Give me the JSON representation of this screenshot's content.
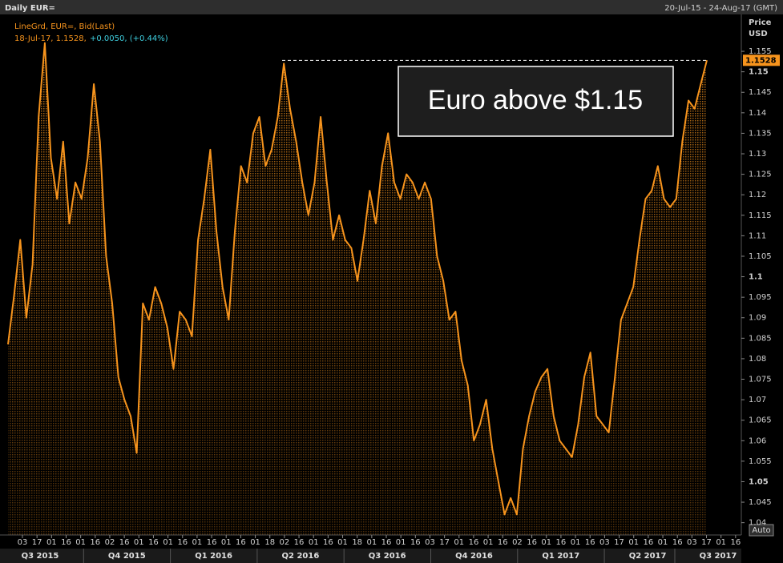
{
  "chart_data": {
    "type": "area",
    "title": "Daily EUR=",
    "date_range": "20-Jul-15 - 24-Aug-17 (GMT)",
    "legend_line": "LineGrd, EUR=, Bid(Last)",
    "legend_point": "18-Jul-17, 1.1528,",
    "legend_change": "+0.0050, (+0.44%)",
    "y_axis_label": [
      "Price",
      "USD"
    ],
    "annotation": "Euro above $1.15",
    "last_value": 1.1528,
    "auto_button": "Auto",
    "color": "#f7941d",
    "series": [
      {
        "name": "EUR=",
        "color": "#f7941d",
        "values": [
          1.0835,
          1.0955,
          1.109,
          1.09,
          1.103,
          1.139,
          1.157,
          1.129,
          1.119,
          1.133,
          1.113,
          1.123,
          1.119,
          1.129,
          1.147,
          1.133,
          1.105,
          1.0935,
          1.0755,
          1.07,
          1.066,
          1.057,
          1.0935,
          1.0895,
          1.0975,
          1.0935,
          1.0875,
          1.0775,
          1.0915,
          1.0895,
          1.0855,
          1.109,
          1.119,
          1.131,
          1.111,
          1.0975,
          1.0895,
          1.111,
          1.127,
          1.123,
          1.135,
          1.139,
          1.127,
          1.131,
          1.139,
          1.152,
          1.141,
          1.133,
          1.123,
          1.115,
          1.123,
          1.139,
          1.123,
          1.109,
          1.115,
          1.109,
          1.107,
          1.099,
          1.109,
          1.121,
          1.113,
          1.127,
          1.135,
          1.123,
          1.119,
          1.125,
          1.123,
          1.119,
          1.123,
          1.119,
          1.105,
          1.099,
          1.0895,
          1.0915,
          1.0795,
          1.0735,
          1.06,
          1.064,
          1.07,
          1.058,
          1.05,
          1.042,
          1.046,
          1.042,
          1.058,
          1.066,
          1.072,
          1.0755,
          1.0775,
          1.066,
          1.06,
          1.058,
          1.056,
          1.064,
          1.0755,
          1.0815,
          1.066,
          1.064,
          1.062,
          1.0755,
          1.0895,
          1.0935,
          1.0975,
          1.109,
          1.119,
          1.121,
          1.127,
          1.119,
          1.117,
          1.119,
          1.133,
          1.143,
          1.141,
          1.147,
          1.1528
        ]
      }
    ],
    "ylim": [
      1.037,
      1.164
    ],
    "yticks": [
      1.04,
      1.045,
      1.05,
      1.055,
      1.06,
      1.065,
      1.07,
      1.075,
      1.08,
      1.085,
      1.09,
      1.095,
      1.1,
      1.105,
      1.11,
      1.115,
      1.12,
      1.125,
      1.13,
      1.135,
      1.14,
      1.145,
      1.15,
      1.155
    ],
    "xticks": [
      "03",
      "17",
      "01",
      "16",
      "01",
      "16",
      "02",
      "16",
      "01",
      "16",
      "01",
      "16",
      "01",
      "16",
      "01",
      "16",
      "01",
      "18",
      "02",
      "16",
      "01",
      "16",
      "01",
      "18",
      "01",
      "16",
      "01",
      "16",
      "03",
      "17",
      "01",
      "16",
      "01",
      "16",
      "02",
      "16",
      "01",
      "16",
      "01",
      "16",
      "03",
      "17",
      "01",
      "16",
      "01",
      "16",
      "03",
      "17",
      "01",
      "16"
    ],
    "quarters": [
      "Q3 2015",
      "Q4 2015",
      "Q1 2016",
      "Q2 2016",
      "Q3 2016",
      "Q4 2016",
      "Q1 2017",
      "Q2 2017",
      "Q3 2017"
    ]
  }
}
